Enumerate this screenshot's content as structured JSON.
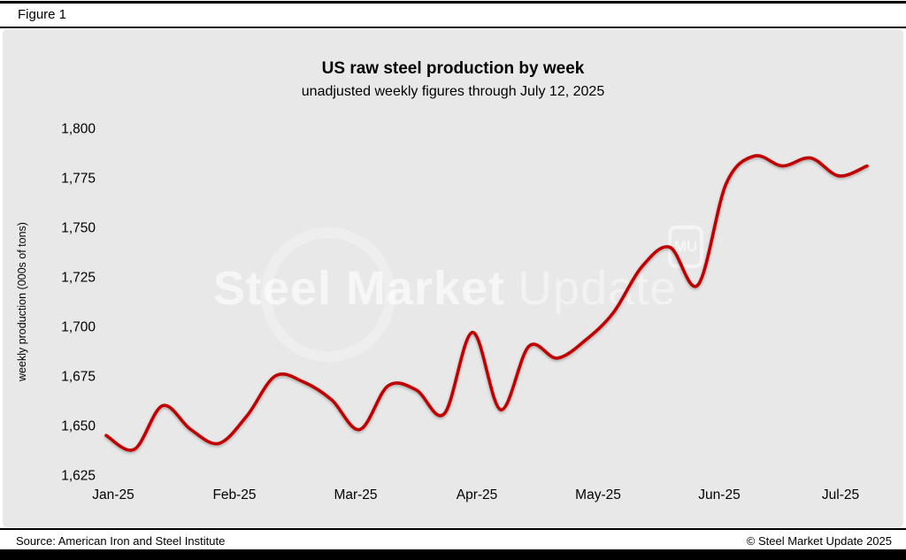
{
  "header": {
    "figure_label": "Figure 1"
  },
  "watermark": {
    "primary": "Steel Market",
    "secondary": "Update",
    "badge": "MU"
  },
  "footer": {
    "source": "Source: American Iron and Steel Institute",
    "copyright": "© Steel Market Update 2025"
  },
  "colors": {
    "line": "#c00000",
    "panel_bg": "#e8e8e8",
    "text": "#000000"
  },
  "chart_data": {
    "type": "line",
    "title": "US raw steel production by week",
    "subtitle": "unadjusted weekly figures through July 12, 2025",
    "xlabel": "",
    "ylabel": "weekly production (000s of tons)",
    "ylim": [
      1625,
      1800
    ],
    "y_tick_step": 25,
    "y_tick_labels": [
      "1,800",
      "1,775",
      "1,750",
      "1,725",
      "1,700",
      "1,675",
      "1,650",
      "1,625"
    ],
    "x_tick_labels": [
      "Jan-25",
      "Feb-25",
      "Mar-25",
      "Apr-25",
      "May-25",
      "Jun-25",
      "Jul-25"
    ],
    "grid": false,
    "legend": "none",
    "line_color": "#c00000",
    "series": [
      {
        "name": "US raw steel production (000s of tons, weekly, unadjusted)",
        "x": [
          1,
          2,
          3,
          4,
          5,
          6,
          7,
          8,
          9,
          10,
          11,
          12,
          13,
          14,
          15,
          16,
          17,
          18,
          19,
          20,
          21,
          22,
          23,
          24,
          25,
          26,
          27,
          28
        ],
        "values": [
          1645,
          1638,
          1660,
          1648,
          1641,
          1655,
          1675,
          1672,
          1663,
          1648,
          1670,
          1668,
          1656,
          1697,
          1658,
          1690,
          1684,
          1693,
          1707,
          1730,
          1740,
          1721,
          1772,
          1786,
          1781,
          1785,
          1776,
          1781
        ]
      }
    ]
  }
}
